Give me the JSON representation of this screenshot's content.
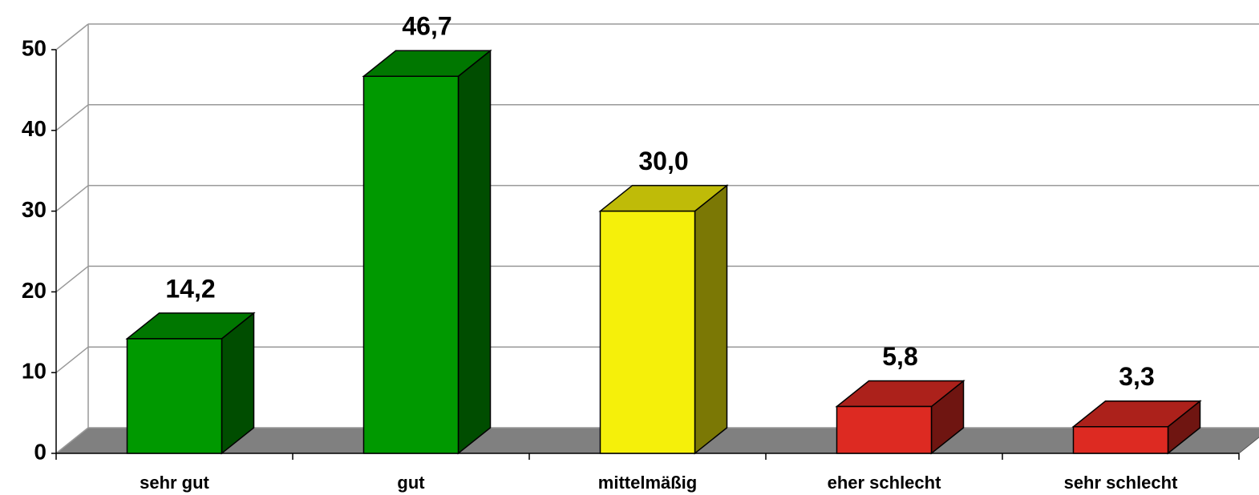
{
  "chart_data": {
    "type": "bar3d",
    "categories": [
      "sehr gut",
      "gut",
      "mittelmäßig",
      "eher schlecht",
      "sehr schlecht"
    ],
    "values": [
      14.2,
      46.7,
      30.0,
      5.8,
      3.3
    ],
    "value_labels": [
      "14,2",
      "46,7",
      "30,0",
      "5,8",
      "3,3"
    ],
    "colors": [
      "#009900",
      "#009900",
      "#f5f00a",
      "#dd2a22",
      "#dd2a22"
    ],
    "ylim": [
      0,
      50
    ],
    "yticks": [
      0,
      10,
      20,
      30,
      40,
      50
    ],
    "grid": true
  }
}
